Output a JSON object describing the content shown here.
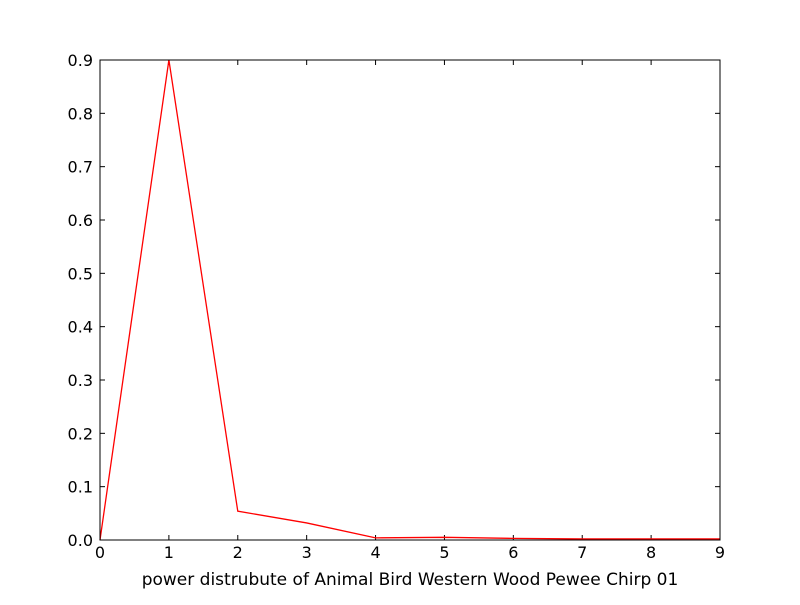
{
  "chart_data": {
    "type": "line",
    "title": "",
    "xlabel": "power distrubute of Animal Bird Western Wood Pewee Chirp 01",
    "ylabel": "",
    "xlim": [
      0,
      9
    ],
    "ylim": [
      0.0,
      0.9
    ],
    "x_ticks": [
      "0",
      "1",
      "2",
      "3",
      "4",
      "5",
      "6",
      "7",
      "8",
      "9"
    ],
    "y_ticks": [
      "0.0",
      "0.1",
      "0.2",
      "0.3",
      "0.4",
      "0.5",
      "0.6",
      "0.7",
      "0.8",
      "0.9"
    ],
    "grid": false,
    "legend": "none",
    "series": [
      {
        "color": "#ff0000",
        "x": [
          0,
          1,
          2,
          3,
          4,
          5,
          6,
          7,
          8,
          9
        ],
        "values": [
          0.0,
          0.9,
          0.054,
          0.032,
          0.004,
          0.005,
          0.003,
          0.002,
          0.002,
          0.002
        ]
      }
    ]
  }
}
